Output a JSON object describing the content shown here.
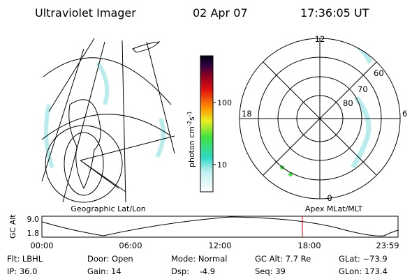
{
  "header": {
    "title": "Ultraviolet Imager",
    "date": "02 Apr 07",
    "time": "17:36:05 UT"
  },
  "colorbar": {
    "label": [
      "photon cm",
      "-2",
      "s",
      "-1"
    ],
    "ticks": [
      "100",
      "10"
    ]
  },
  "polar_plot": {
    "labels": {
      "top": "12",
      "bottom": "0",
      "left": "18",
      "right": "6",
      "lat60": "60",
      "lat70": "70",
      "lat80": "80"
    }
  },
  "timeline": {
    "left_title": "Geographic Lat/Lon",
    "right_title": "Apex MLat/MLT",
    "axis_label": "GC Alt",
    "y_labels": [
      "9.0",
      "1.8"
    ],
    "x_labels": [
      "00:00",
      "06:00",
      "12:00",
      "18:00",
      "23:59"
    ]
  },
  "footer": {
    "rows": [
      [
        "Flt: LBHL",
        "Door: Open",
        "Mode: Normal",
        "GC Alt: 7.7 Re",
        "GLat: −73.9"
      ],
      [
        "IP: 36.0",
        "Gain: 14",
        "Dsp:    -4.9",
        "Seq: 39",
        "GLon: 173.4"
      ]
    ]
  }
}
